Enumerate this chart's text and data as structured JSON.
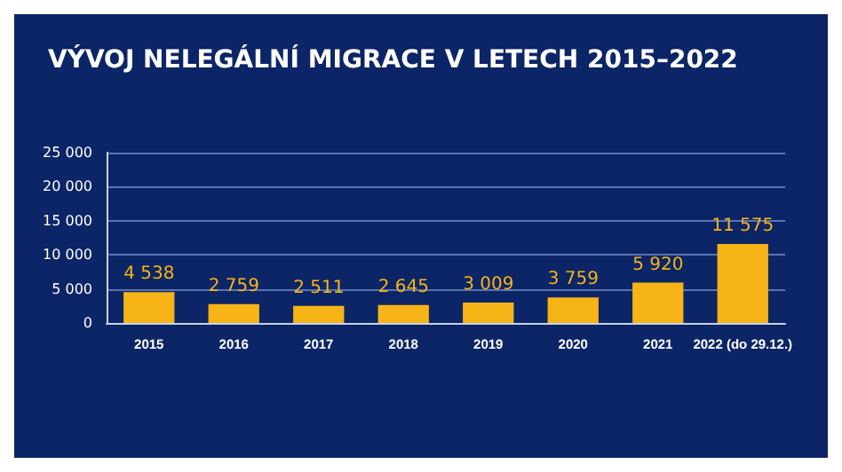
{
  "chart_data": {
    "type": "bar",
    "title": "VÝVOJ NELEGÁLNÍ MIGRACE V LETECH 2015–2022",
    "categories": [
      "2015",
      "2016",
      "2017",
      "2018",
      "2019",
      "2020",
      "2021",
      "2022 (do 29.12.)"
    ],
    "values": [
      4538,
      2759,
      2511,
      2645,
      3009,
      3759,
      5920,
      11575
    ],
    "value_labels": [
      "4 538",
      "2 759",
      "2 511",
      "2 645",
      "3 009",
      "3 759",
      "5 920",
      "11 575"
    ],
    "color": "#f7b416",
    "ylim": [
      0,
      25000
    ],
    "yticks": [
      {
        "value": 0,
        "label": "0"
      },
      {
        "value": 5000,
        "label": "5 000"
      },
      {
        "value": 10000,
        "label": "10 000"
      },
      {
        "value": 15000,
        "label": "15 000"
      },
      {
        "value": 20000,
        "label": "20 000"
      },
      {
        "value": 25000,
        "label": "25 000"
      }
    ],
    "grid": "y"
  }
}
